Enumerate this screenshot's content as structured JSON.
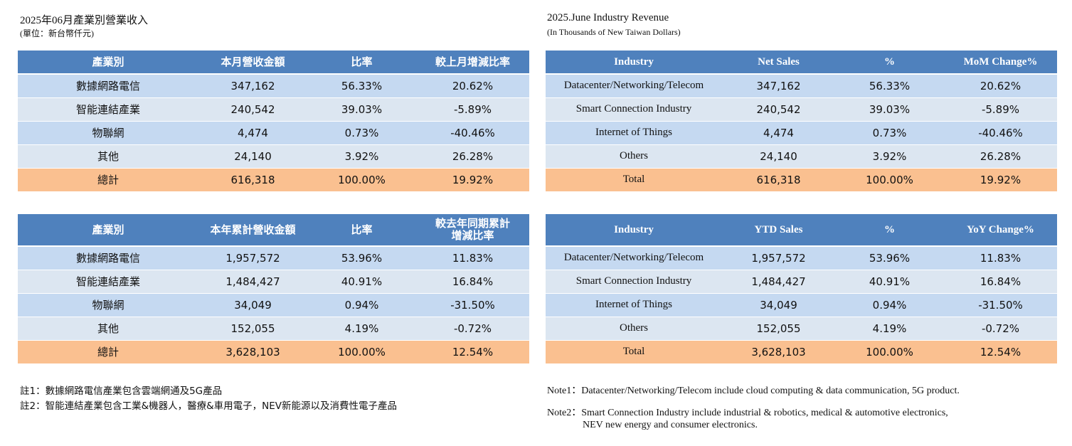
{
  "zh": {
    "title": "2025年06月產業別營業收入",
    "unit": "(單位：新台幣仟元)",
    "monthly": {
      "headers": [
        "產業別",
        "本月營收金額",
        "比率",
        "較上月增減比率"
      ],
      "rows": [
        [
          "數據網路電信",
          "347,162",
          "56.33%",
          "20.62%"
        ],
        [
          "智能連結產業",
          "240,542",
          "39.03%",
          "-5.89%"
        ],
        [
          "物聯網",
          "4,474",
          "0.73%",
          "-40.46%"
        ],
        [
          "其他",
          "24,140",
          "3.92%",
          "26.28%"
        ],
        [
          "總計",
          "616,318",
          "100.00%",
          "19.92%"
        ]
      ]
    },
    "ytd": {
      "headers": [
        "產業別",
        "本年累計營收金額",
        "比率",
        "較去年同期累計增減比率"
      ],
      "header_line1": "較去年同期累計",
      "header_line2": "增減比率",
      "rows": [
        [
          "數據網路電信",
          "1,957,572",
          "53.96%",
          "11.83%"
        ],
        [
          "智能連結產業",
          "1,484,427",
          "40.91%",
          "16.84%"
        ],
        [
          "物聯網",
          "34,049",
          "0.94%",
          "-31.50%"
        ],
        [
          "其他",
          "152,055",
          "4.19%",
          "-0.72%"
        ],
        [
          "總計",
          "3,628,103",
          "100.00%",
          "12.54%"
        ]
      ]
    },
    "note1": "註1：數據網路電信產業包含雲端網通及5G產品",
    "note2": "註2：智能連結產業包含工業&機器人，醫療&車用電子，NEV新能源以及消費性電子產品"
  },
  "en": {
    "title": "2025.June Industry Revenue",
    "unit": "(In Thousands of New Taiwan Dollars)",
    "monthly": {
      "headers": [
        "Industry",
        "Net Sales",
        "%",
        "MoM Change%"
      ],
      "rows": [
        [
          "Datacenter/Networking/Telecom",
          "347,162",
          "56.33%",
          "20.62%"
        ],
        [
          "Smart Connection Industry",
          "240,542",
          "39.03%",
          "-5.89%"
        ],
        [
          "Internet of Things",
          "4,474",
          "0.73%",
          "-40.46%"
        ],
        [
          "Others",
          "24,140",
          "3.92%",
          "26.28%"
        ],
        [
          "Total",
          "616,318",
          "100.00%",
          "19.92%"
        ]
      ]
    },
    "ytd": {
      "headers": [
        "Industry",
        "YTD Sales",
        "%",
        "YoY Change%"
      ],
      "rows": [
        [
          "Datacenter/Networking/Telecom",
          "1,957,572",
          "53.96%",
          "11.83%"
        ],
        [
          "Smart Connection Industry",
          "1,484,427",
          "40.91%",
          "16.84%"
        ],
        [
          "Internet of Things",
          "34,049",
          "0.94%",
          "-31.50%"
        ],
        [
          "Others",
          "152,055",
          "4.19%",
          "-0.72%"
        ],
        [
          "Total",
          "3,628,103",
          "100.00%",
          "12.54%"
        ]
      ]
    },
    "note1": "Note1：Datacenter/Networking/Telecom include cloud computing & data communication, 5G product.",
    "note2_line1": "Note2：Smart Connection Industry include industrial & robotics, medical & automotive electronics,",
    "note2_line2": "NEV new energy and consumer electronics."
  }
}
